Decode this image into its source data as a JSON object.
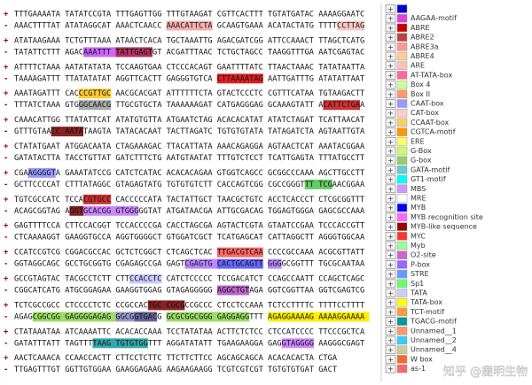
{
  "strand_labels": {
    "plus": "+",
    "minus": "-"
  },
  "sequence_blocks": [
    {
      "plus": "TTTGAAAATA TATATCCGTA TTTGAGTTGG TTTGTAAGAT CGTTCACTTT TGTATGATAC AAAAGGAATC",
      "minus": "AAACTTTTAT ATATAGGCAT AAACTCAACC AAACATTCTA GCAAGTGAAA ACATACTATG TTTTCCTTAG"
    },
    {
      "plus": "ATATAAGAAA TCTGTTTAAA ATAACTCACA TGCTAAATTG AGACGATCGG ATTCCAAACT TTAGCTCATG",
      "minus": "TATATTCTTT AGACAAATTT TATTGAGTGT ACGATTTAAC TCTGCTAGCC TAAGGTTTGA AATCGAGTAC"
    },
    {
      "plus": "ATTTTCTAAA AATATATATA TCCAAGTGAA CTCCCACAGT GAATTTTATC TTAACTAAAC TATATAATTA",
      "minus": "TAAAAGATTT TTATATATAT AGGTTCACTT GAGGGTGTCA CTTAAAATAG AATTGATTTG ATATATTAAT"
    },
    {
      "plus": "AAATAGATTT CACCCGTTGC AACGCACGAT ATTTTTTCTA GTACTCCCTC CGTTTCATAA TGTAAGACTT",
      "minus": "TTTATCTAAA GTGGGCAACG TTGCGTGCTA TAAAAAAGAT CATGAGGGAG GCAAAGTATT ACATTCTGAA"
    },
    {
      "plus": "CAAACATTGG TTATATTCAT ATATGTGTTA ATGAATCTAG ACACACATAT ATATCTAGAT TCATTAACAT",
      "minus": "GTTTGTAACC AATATAAGTA TATACACAAT TACTTAGATC TGTGTGTATA TATAGATCTA AGTAATTGTA"
    },
    {
      "plus": "CTATATGAAT ATGGACAATA CTAGAAAGAC TTACATTATA AAACAGAGGA AGTAACTCAT AAATACGGAA",
      "minus": "GATATACTTA TACCTGTTAT GATCTTTCTG AATGTAATAT TTTGTCTCCT TCATTGAGTA TTTATGCCTT"
    },
    {
      "plus": "CGAAGGGGTA GAAATATCCG CATCTCATAC ACACACAGAA GTGGTCAGCC GCGGCCCAAA AGCTTGCCTT",
      "minus": "GCTTCCCCAT CTTTATAGGC GTAGAGTATG TGTGTGTCTT CACCAGTCGG CGCCGGGTTT TCGAACGGAA"
    },
    {
      "plus": "TGTCGCCATC TCCACGTGCC CACCCCCATA TACTATTGCT TAACGCTGTC ACCTCACCCT CTCGCGGTTT",
      "minus": "ACAGCGGTAG AGGTGCACGG GTGGGGGTAT ATGATAACGA ATTGCGACAG TGGAGTGGGA GAGCGCCAAA"
    },
    {
      "plus": "GAGTTTTCCA CTTCCACGGT TCCACCCCGA CACCTAGCGA AGTACTCGTA GTAATCCGAA TCCCACCGTT",
      "minus": "CTCAAAAGGT GAAGGTGCCA AGGTGGGGCT GTGGATCGCT TCATGAGCAT CATTAGGCTT AGGGTGGCAA"
    },
    {
      "plus": "CCATCCGTCG CGGACGCCAC GCTCTCGGCT CTCAGCTCAC TTGACGTCAA CCCCGCCAAA ACGCGTTATT",
      "minus": "GGTAGGCAGC GCCTGCGGTG CGAGAGCCGA GAGTCGAGTG CACTGCAGTT GGGGCGGTTT TGCGCAATAA"
    },
    {
      "plus": "GCCGTAGTAC TACGCCTCTT CTTCCACCTC CATCTCCCCC TCCGACATCT CCAGCCAATT CCAGCTCAGC",
      "minus": "CGGCATCATG ATGCGGAGAA GAAGGTGGAG GTAGAGGGGG AGGCTGTAGA GGTCGGTTAA GGTCGAGTCG"
    },
    {
      "plus": "TCTCGCCGCC CTCCCCTCTC CCGCCACTGC CGCGCCGCCC CTCCTCCAAA TCTCCTTTTC TTTTCCTTTT",
      "minus": "AGAGCGGCGG GAGGGGAGAG GGCGGTGACG GCGCGGCGGG GAGGAGGTTT AGAGGAAAAG AAAAGGAAAA"
    },
    {
      "plus": "CTATAAATAA ATCAAAATTC ACACACCAAA TCCTATATAA ACTTCTCTCC CTCCATCCCC TTCCCGCTCA",
      "minus": "GATATTTATT TAGTTTTAAG TGTGTGGTTT AGGATATATT TGAAGAAGGA GAGGTAGGGG AAGGGCGAGT"
    },
    {
      "plus": "AACTCAAACA CCAACCACTT CTTCCTCTTC TTCTTCTTCC AGCAGCAGCA ACACACACTA CTGA",
      "minus": "TTGAGTTTGT GGTTGTGGAA GAAGGAGAAG AAGAAGAAGG TCGTCGTCGT TGTGTGTGAT GACT"
    }
  ],
  "legend_toggle": "+",
  "legend": [
    {
      "color": "#0000cc"
    },
    {
      "label": "AAGAA-motif",
      "color": "#e040e0"
    },
    {
      "label": "ABRE",
      "color": "#cc0000"
    },
    {
      "label": "ABRE2",
      "color": "#c04040"
    },
    {
      "label": "ABRE3a",
      "color": "#ff9999"
    },
    {
      "label": "ABRE4",
      "color": "#ffcc99"
    },
    {
      "label": "ARE",
      "color": "#ffc0c0"
    },
    {
      "label": "AT-TATA-box",
      "color": "#ff6699"
    },
    {
      "label": "Box 4",
      "color": "#ccff99"
    },
    {
      "label": "Box II",
      "color": "#ff9966"
    },
    {
      "label": "CAAT-box",
      "color": "#9999ff"
    },
    {
      "label": "CAT-box",
      "color": "#ffcccc"
    },
    {
      "label": "CCAAT-box",
      "color": "#ffcc66"
    },
    {
      "label": "CGTCA-motif",
      "color": "#ff9900"
    },
    {
      "label": "ERE",
      "color": "#ffff66"
    },
    {
      "label": "G-Box",
      "color": "#ccff66"
    },
    {
      "label": "G-box",
      "color": "#99cc66"
    },
    {
      "label": "GATA-motif",
      "color": "#66cccc"
    },
    {
      "label": "GT1-motif",
      "color": "#00ffff"
    },
    {
      "label": "MBS",
      "color": "#cc99ff"
    },
    {
      "label": "MRE",
      "color": "#ffffff"
    },
    {
      "label": "MYB",
      "color": "#0000ff"
    },
    {
      "label": "MYB recognition site",
      "color": "#ff66ff"
    },
    {
      "label": "MYB-like sequence",
      "color": "#990000"
    },
    {
      "label": "MYC",
      "color": "#ff3333"
    },
    {
      "label": "Myb",
      "color": "#99ff99"
    },
    {
      "label": "O2-site",
      "color": "#cc66cc"
    },
    {
      "label": "P-box",
      "color": "#9966ff"
    },
    {
      "label": "STRE",
      "color": "#6699ff"
    },
    {
      "label": "Sp1",
      "color": "#66ff66"
    },
    {
      "label": "TATA",
      "color": "#ccccff"
    },
    {
      "label": "TATA-box",
      "color": "#ffff00"
    },
    {
      "label": "TCT-motif",
      "color": "#ff9933"
    },
    {
      "label": "TGACG-motif",
      "color": "#009999"
    },
    {
      "label": "Unnamed__1",
      "color": "#ff9966"
    },
    {
      "label": "Unnamed__2",
      "color": "#33ccff"
    },
    {
      "label": "Unnamed__4",
      "color": "#cccc99"
    },
    {
      "label": "W box",
      "color": "#ff6633"
    },
    {
      "label": "as-1",
      "color": "#ff6666"
    }
  ],
  "watermark": "知乎 @鹿明生物"
}
